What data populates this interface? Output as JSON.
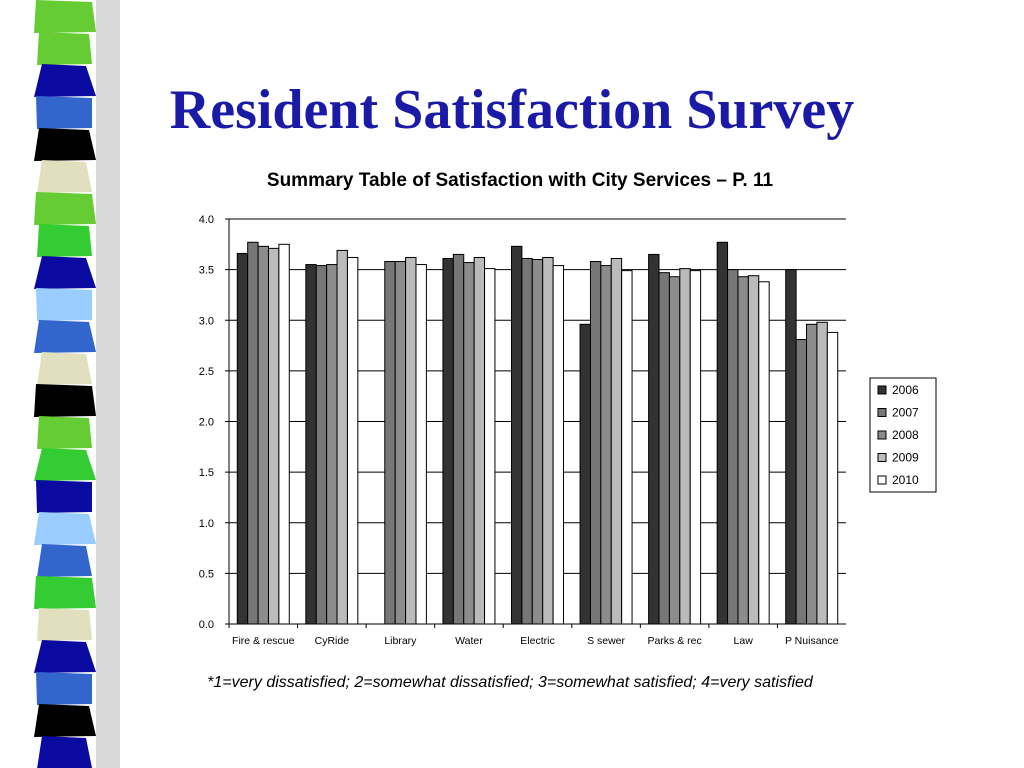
{
  "slide": {
    "title": "Resident Satisfaction Survey",
    "footnote": "*1=very dissatisfied; 2=somewhat dissatisfied; 3=somewhat satisfied; 4=very satisfied"
  },
  "decor": {
    "strip_colors": [
      "#66cc33",
      "#66cc33",
      "#0a0aa0",
      "#3366cc",
      "#000000",
      "#e0e0bf",
      "#66cc33",
      "#33cc33",
      "#0a0aa0",
      "#99ccff",
      "#3366cc",
      "#e0e0bf",
      "#000000",
      "#66cc33",
      "#33cc33",
      "#0a0aa0",
      "#99ccff",
      "#3366cc",
      "#33cc33",
      "#e0e0bf",
      "#0a0aa0",
      "#3366cc",
      "#000000",
      "#0a0aa0"
    ]
  },
  "chart_data": {
    "type": "bar",
    "title": "Summary Table of Satisfaction with City Services – P. 11",
    "xlabel": "",
    "ylabel": "",
    "ylim": [
      0,
      4.0
    ],
    "yticks": [
      "0.0",
      "0.5",
      "1.0",
      "1.5",
      "2.0",
      "2.5",
      "3.0",
      "3.5",
      "4.0"
    ],
    "grid": true,
    "legend_position": "right",
    "categories": [
      "Fire & rescue",
      "CyRide",
      "Library",
      "Water",
      "Electric",
      "S sewer",
      "Parks & rec",
      "Law",
      "P Nuisance"
    ],
    "series": [
      {
        "name": "2006",
        "color": "#333333",
        "values": [
          3.66,
          3.55,
          null,
          3.61,
          3.73,
          2.96,
          3.65,
          3.77,
          3.5
        ]
      },
      {
        "name": "2007",
        "color": "#777777",
        "values": [
          3.77,
          3.54,
          3.58,
          3.65,
          3.61,
          3.58,
          3.47,
          3.5,
          2.81
        ]
      },
      {
        "name": "2008",
        "color": "#8c8c8c",
        "values": [
          3.73,
          3.55,
          3.58,
          3.57,
          3.6,
          3.54,
          3.43,
          3.43,
          2.96
        ]
      },
      {
        "name": "2009",
        "color": "#bbbbbb",
        "values": [
          3.71,
          3.69,
          3.62,
          3.62,
          3.62,
          3.61,
          3.51,
          3.44,
          2.98
        ]
      },
      {
        "name": "2010",
        "color": "#ffffff",
        "values": [
          3.75,
          3.62,
          3.55,
          3.51,
          3.54,
          3.49,
          3.49,
          3.38,
          2.88
        ]
      }
    ]
  }
}
